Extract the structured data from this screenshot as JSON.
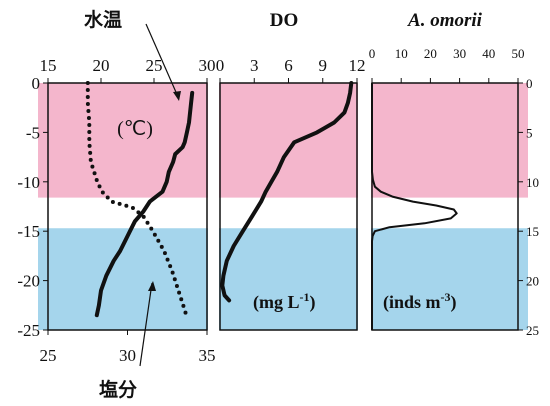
{
  "chart_data": [
    {
      "type": "line",
      "panel": "temperature-salinity",
      "title": "水温",
      "unit_label": "(℃)",
      "annotation": "塩分",
      "y_axis": {
        "ylim": [
          0,
          25
        ],
        "inverted": true,
        "ticks": [
          0,
          -5,
          -10,
          -15,
          -20,
          -25
        ]
      },
      "x_axis_top": {
        "label": "水温",
        "xlim": [
          15,
          30
        ],
        "ticks": [
          15,
          20,
          25,
          30
        ]
      },
      "x_axis_bottom": {
        "label": "塩分",
        "xlim": [
          25,
          35
        ],
        "ticks": [
          25,
          30,
          35
        ]
      },
      "series": [
        {
          "name": "水温",
          "axis": "top",
          "style": "solid",
          "x": [
            28.6,
            28.5,
            28.3,
            28.1,
            27.9,
            27.7,
            27.0,
            26.8,
            26.4,
            26.2,
            25.8,
            24.6,
            24.0,
            23.2,
            22.5,
            21.8,
            21.2,
            20.5,
            20.0,
            19.8,
            19.6
          ],
          "y": [
            -1.0,
            -2.0,
            -4.0,
            -5.0,
            -6.0,
            -6.5,
            -7.2,
            -8.0,
            -9.0,
            -10.0,
            -11.0,
            -12.0,
            -13.0,
            -14.0,
            -15.5,
            -17.0,
            -18.0,
            -19.5,
            -21.0,
            -22.5,
            -23.5
          ]
        },
        {
          "name": "塩分",
          "axis": "bottom",
          "style": "dotted",
          "x": [
            27.5,
            27.5,
            27.6,
            27.6,
            27.7,
            27.9,
            28.1,
            28.4,
            29.0,
            30.3,
            31.0,
            31.6,
            32.3,
            32.8,
            33.2,
            33.5,
            33.7
          ],
          "y": [
            0.0,
            -2.0,
            -4.0,
            -6.0,
            -8.0,
            -9.0,
            -10.0,
            -11.0,
            -12.0,
            -12.6,
            -13.5,
            -15.0,
            -17.0,
            -19.0,
            -21.0,
            -22.5,
            -23.5
          ]
        }
      ]
    },
    {
      "type": "line",
      "panel": "do",
      "title": "DO",
      "unit_label": "(mg L",
      "unit_sup": "-1",
      "unit_close": ")",
      "y_axis": {
        "ylim": [
          0,
          25
        ],
        "inverted": true
      },
      "x_axis_top": {
        "xlim": [
          0,
          12
        ],
        "ticks": [
          0,
          3,
          6,
          9,
          12
        ]
      },
      "series": [
        {
          "name": "DO",
          "style": "solid",
          "x": [
            11.5,
            11.4,
            11.2,
            10.9,
            10.0,
            8.5,
            6.5,
            5.6,
            5.0,
            4.5,
            4.0,
            3.6,
            2.8,
            2.0,
            1.2,
            0.6,
            0.3,
            0.2,
            0.4,
            0.8
          ],
          "y": [
            0.0,
            -1.0,
            -2.0,
            -3.0,
            -4.0,
            -5.0,
            -6.0,
            -7.5,
            -9.0,
            -10.0,
            -11.0,
            -12.0,
            -13.5,
            -15.0,
            -16.5,
            -18.0,
            -19.5,
            -20.5,
            -21.5,
            -22.0
          ]
        }
      ]
    },
    {
      "type": "line",
      "panel": "a-omorii",
      "title": "A. omorii",
      "unit_label": "(inds m",
      "unit_sup": "-3",
      "unit_close": ")",
      "y_axis_right": {
        "ylim": [
          0,
          25
        ],
        "inverted": false,
        "ticks": [
          0,
          5,
          10,
          15,
          20,
          25
        ]
      },
      "x_axis_top": {
        "xlim": [
          0,
          50
        ],
        "ticks": [
          0,
          10,
          20,
          30,
          40,
          50
        ]
      },
      "series": [
        {
          "name": "A. omorii",
          "style": "solid",
          "x": [
            0,
            0,
            0,
            0,
            0.3,
            1.0,
            3.0,
            7.0,
            14.0,
            22.0,
            28.0,
            29.0,
            27.0,
            18.0,
            6.0,
            1.0,
            0.2,
            0,
            0
          ],
          "y": [
            0,
            5,
            7,
            9,
            9.8,
            10.5,
            11.0,
            11.5,
            12.0,
            12.4,
            12.8,
            13.2,
            13.7,
            14.2,
            14.6,
            15.0,
            15.5,
            16.0,
            25.0
          ]
        }
      ]
    }
  ],
  "bands": [
    {
      "name": "surface-layer",
      "from_depth": 0,
      "to_depth": -11.6,
      "color": "#f4b6cc"
    },
    {
      "name": "bottom-layer",
      "from_depth": -14.7,
      "to_depth": -25,
      "color": "#a5d5ec"
    }
  ]
}
